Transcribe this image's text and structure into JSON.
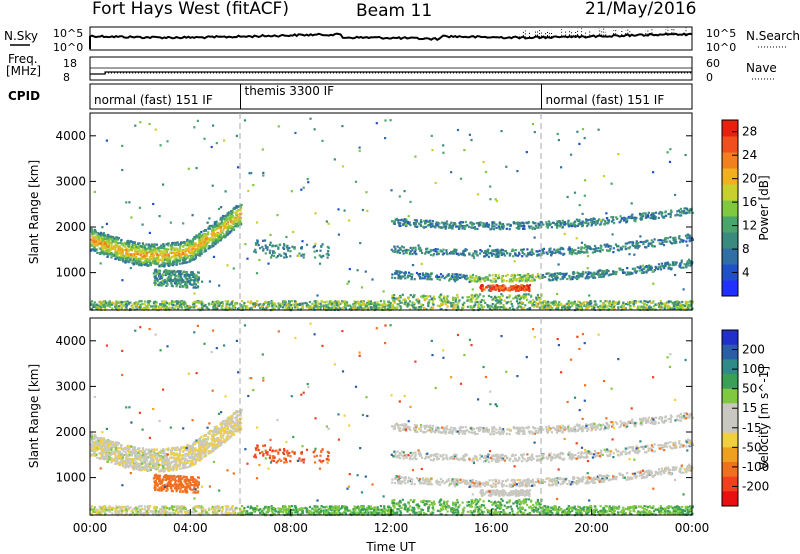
{
  "header": {
    "station": "Fort Hays West (fitACF)",
    "beam": "Beam 11",
    "date": "21/May/2016"
  },
  "nsky_panel": {
    "left_label": "N.Sky",
    "right_label": "N.Search",
    "left_ticks": [
      "10^5",
      "10^0"
    ],
    "right_ticks": [
      "10^5",
      "10^0"
    ]
  },
  "freq_panel": {
    "left_label_1": "Freq.",
    "left_label_2": "[MHz]",
    "right_label": "Nave",
    "left_ticks": [
      "18",
      "8"
    ],
    "right_ticks": [
      "60",
      "0"
    ]
  },
  "cpid_panel": {
    "label": "CPID",
    "segments": [
      {
        "start_hour": 0,
        "end_hour": 6,
        "name": "normal (fast) 151 IF"
      },
      {
        "start_hour": 6,
        "end_hour": 18,
        "name": "themis 3300 IF"
      },
      {
        "start_hour": 18,
        "end_hour": 24,
        "name": "normal (fast) 151 IF"
      }
    ]
  },
  "chart_data": [
    {
      "type": "heatmap",
      "name": "power",
      "xlabel": "",
      "ylabel": "Slant Range [km]",
      "xlim": [
        0,
        24
      ],
      "ylim": [
        180,
        4500
      ],
      "yticks": [
        1000,
        2000,
        3000,
        4000
      ],
      "colorbar": {
        "label": "Power [dB]",
        "ticks": [
          "4",
          "8",
          "12",
          "16",
          "20",
          "24",
          "28"
        ],
        "range": [
          0,
          30
        ],
        "colors": [
          "#2030ff",
          "#2050c8",
          "#2f6fa3",
          "#3a8a7e",
          "#4aa56a",
          "#80c840",
          "#c8d030",
          "#f0b020",
          "#f08020",
          "#f05020",
          "#e82010"
        ]
      },
      "features": [
        {
          "hours": [
            0,
            6
          ],
          "range_km": [
            1300,
            2300
          ],
          "db": 14
        },
        {
          "hours": [
            2.5,
            4.5
          ],
          "range_km": [
            700,
            1200
          ],
          "db": 10
        },
        {
          "hours": [
            6.5,
            9.5
          ],
          "range_km": [
            1300,
            1800
          ],
          "db": 8
        },
        {
          "hours": [
            12,
            24
          ],
          "range_km": [
            600,
            2600
          ],
          "db": 8
        },
        {
          "hours": [
            15.5,
            17.5
          ],
          "range_km": [
            600,
            750
          ],
          "db": 26
        },
        {
          "hours": [
            0,
            24
          ],
          "range_km": [
            180,
            400
          ],
          "db": 12
        }
      ]
    },
    {
      "type": "heatmap",
      "name": "velocity",
      "xlabel": "Time UT",
      "ylabel": "Slant Range [km]",
      "xlim": [
        0,
        24
      ],
      "ylim": [
        180,
        4500
      ],
      "xticks": [
        "00:00",
        "04:00",
        "08:00",
        "12:00",
        "16:00",
        "20:00",
        "00:00"
      ],
      "yticks": [
        1000,
        2000,
        3000,
        4000
      ],
      "colorbar": {
        "label": "Velocity [m s^-1]",
        "ticks": [
          "200",
          "100",
          "50",
          "15",
          "-15",
          "-50",
          "-100",
          "-200"
        ],
        "colors": [
          "#2030c8",
          "#2a5fa8",
          "#2f8a88",
          "#3aa055",
          "#80c840",
          "#c8c8c0",
          "#c8c8c0",
          "#f0d040",
          "#f0a020",
          "#f07020",
          "#f04020",
          "#e81010"
        ]
      },
      "features": [
        {
          "hours": [
            0,
            6
          ],
          "range_km": [
            1500,
            2300
          ],
          "velocity": 0
        },
        {
          "hours": [
            2.5,
            4.5
          ],
          "range_km": [
            700,
            1100
          ],
          "velocity": -60
        },
        {
          "hours": [
            6.5,
            9.5
          ],
          "range_km": [
            1300,
            1700
          ],
          "velocity": -80
        },
        {
          "hours": [
            12,
            24
          ],
          "range_km": [
            600,
            2600
          ],
          "velocity": 0
        },
        {
          "hours": [
            6,
            24
          ],
          "range_km": [
            180,
            450
          ],
          "velocity": 40
        }
      ]
    }
  ]
}
